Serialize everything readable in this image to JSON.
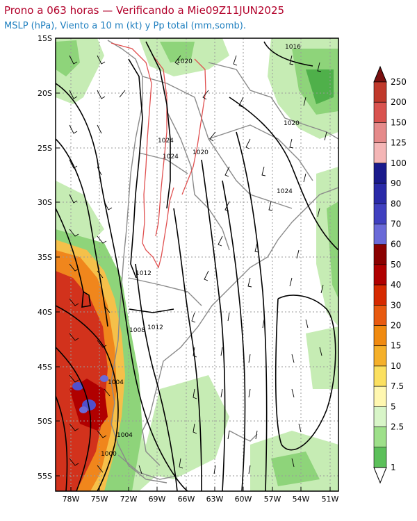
{
  "header": {
    "title": "Prono a 063 horas — Verificando a Mie09Z11JUN2025",
    "subtitle": "MSLP (hPa), Viento a 10 m (kt) y Pp total (mm,somb)."
  },
  "axes": {
    "lat_labels": [
      "15S",
      "20S",
      "25S",
      "30S",
      "35S",
      "40S",
      "45S",
      "50S",
      "55S"
    ],
    "lon_labels": [
      "78W",
      "75W",
      "72W",
      "69W",
      "66W",
      "63W",
      "60W",
      "57W",
      "54W",
      "51W"
    ]
  },
  "isobar_labels": [
    "1016",
    "1020",
    "1020",
    "1024",
    "1024",
    "1024",
    "1020",
    "1012",
    "1012",
    "1008",
    "1004",
    "1004",
    "1000"
  ],
  "colorbar": {
    "labels": [
      "250",
      "200",
      "150",
      "125",
      "100",
      "90",
      "80",
      "70",
      "60",
      "50",
      "40",
      "30",
      "20",
      "15",
      "10",
      "7.5",
      "5",
      "2.5",
      "1"
    ],
    "colors": [
      "#c0392b",
      "#d9534f",
      "#e58a8a",
      "#f4b6b6",
      "#1a1a8c",
      "#2a2aa8",
      "#4040c0",
      "#6a6ad8",
      "#8a0000",
      "#b00000",
      "#d62a00",
      "#e85a10",
      "#f08a10",
      "#f5b02a",
      "#fbe060",
      "#fff7b0",
      "#d8f5c8",
      "#9ee08a",
      "#5cc05a"
    ]
  },
  "map_colors": {
    "rain_heavy": "#d2321c",
    "rain_mid": "#f0861c",
    "rain_light": "#f5c04a",
    "green_light": "#c6ecb4",
    "green_mid": "#8ed47a",
    "green_dark": "#4fb04a",
    "purple": "#5050cc",
    "isobar": "#000000",
    "topo_red": "#e05050",
    "borders": "#8a8a8a"
  }
}
